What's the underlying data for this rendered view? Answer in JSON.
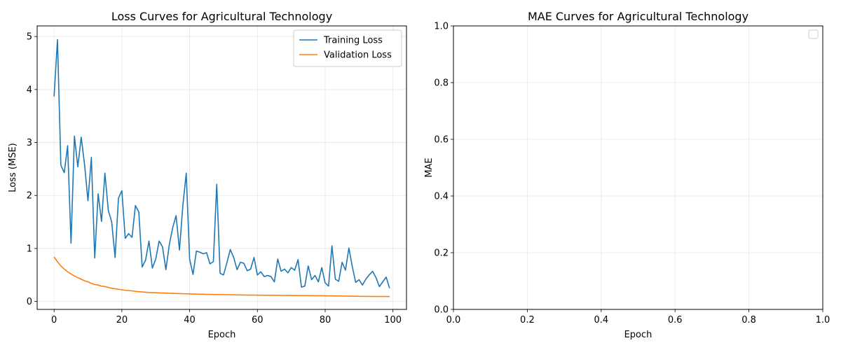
{
  "chart_data": [
    {
      "type": "line",
      "title": "Loss Curves for Agricultural Technology",
      "xlabel": "Epoch",
      "ylabel": "Loss (MSE)",
      "xlim": [
        -5,
        104
      ],
      "ylim": [
        -0.15,
        5.2
      ],
      "xticks": [
        0,
        20,
        40,
        60,
        80,
        100
      ],
      "yticks": [
        0,
        1,
        2,
        3,
        4,
        5
      ],
      "grid": true,
      "legend": "top-right",
      "series": [
        {
          "name": "Training Loss",
          "color": "#1f77b4",
          "x": [
            0,
            1,
            2,
            3,
            4,
            5,
            6,
            7,
            8,
            9,
            10,
            11,
            12,
            13,
            14,
            15,
            16,
            17,
            18,
            19,
            20,
            21,
            22,
            23,
            24,
            25,
            26,
            27,
            28,
            29,
            30,
            31,
            32,
            33,
            34,
            35,
            36,
            37,
            38,
            39,
            40,
            41,
            42,
            43,
            44,
            45,
            46,
            47,
            48,
            49,
            50,
            51,
            52,
            53,
            54,
            55,
            56,
            57,
            58,
            59,
            60,
            61,
            62,
            63,
            64,
            65,
            66,
            67,
            68,
            69,
            70,
            71,
            72,
            73,
            74,
            75,
            76,
            77,
            78,
            79,
            80,
            81,
            82,
            83,
            84,
            85,
            86,
            87,
            88,
            89,
            90,
            91,
            92,
            93,
            94,
            95,
            96,
            97,
            98,
            99
          ],
          "values": [
            3.87,
            4.94,
            2.57,
            2.43,
            2.94,
            1.1,
            3.12,
            2.54,
            3.1,
            2.58,
            1.9,
            2.72,
            0.82,
            2.03,
            1.51,
            2.42,
            1.72,
            1.5,
            0.83,
            1.95,
            2.09,
            1.19,
            1.28,
            1.21,
            1.81,
            1.69,
            0.65,
            0.78,
            1.14,
            0.63,
            0.8,
            1.14,
            1.03,
            0.6,
            1.07,
            1.39,
            1.62,
            0.97,
            1.81,
            2.42,
            0.8,
            0.51,
            0.95,
            0.93,
            0.9,
            0.92,
            0.71,
            0.75,
            2.21,
            0.53,
            0.5,
            0.73,
            0.98,
            0.83,
            0.6,
            0.74,
            0.72,
            0.58,
            0.61,
            0.83,
            0.5,
            0.56,
            0.47,
            0.49,
            0.47,
            0.37,
            0.8,
            0.57,
            0.61,
            0.54,
            0.64,
            0.59,
            0.79,
            0.27,
            0.29,
            0.67,
            0.41,
            0.49,
            0.37,
            0.64,
            0.35,
            0.29,
            1.05,
            0.42,
            0.38,
            0.74,
            0.59,
            1.01,
            0.66,
            0.36,
            0.41,
            0.31,
            0.42,
            0.5,
            0.57,
            0.45,
            0.28,
            0.37,
            0.46,
            0.25
          ]
        },
        {
          "name": "Validation Loss",
          "color": "#ff7f0e",
          "x": [
            0,
            1,
            2,
            3,
            4,
            5,
            6,
            7,
            8,
            9,
            10,
            11,
            12,
            13,
            14,
            15,
            16,
            17,
            18,
            19,
            20,
            21,
            22,
            23,
            24,
            25,
            26,
            27,
            28,
            29,
            30,
            31,
            32,
            33,
            34,
            35,
            36,
            37,
            38,
            39,
            40,
            41,
            42,
            43,
            44,
            45,
            46,
            47,
            48,
            49,
            50,
            51,
            52,
            53,
            54,
            55,
            56,
            57,
            58,
            59,
            60,
            61,
            62,
            63,
            64,
            65,
            66,
            67,
            68,
            69,
            70,
            71,
            72,
            73,
            74,
            75,
            76,
            77,
            78,
            79,
            80,
            81,
            82,
            83,
            84,
            85,
            86,
            87,
            88,
            89,
            90,
            91,
            92,
            93,
            94,
            95,
            96,
            97,
            98,
            99
          ],
          "values": [
            0.84,
            0.75,
            0.67,
            0.61,
            0.56,
            0.52,
            0.48,
            0.45,
            0.42,
            0.39,
            0.37,
            0.34,
            0.32,
            0.31,
            0.29,
            0.28,
            0.265,
            0.25,
            0.24,
            0.23,
            0.22,
            0.21,
            0.205,
            0.2,
            0.19,
            0.185,
            0.18,
            0.175,
            0.17,
            0.168,
            0.165,
            0.162,
            0.16,
            0.158,
            0.155,
            0.152,
            0.15,
            0.148,
            0.146,
            0.144,
            0.142,
            0.14,
            0.138,
            0.137,
            0.136,
            0.134,
            0.133,
            0.132,
            0.13,
            0.129,
            0.128,
            0.127,
            0.126,
            0.125,
            0.124,
            0.123,
            0.122,
            0.121,
            0.12,
            0.12,
            0.119,
            0.118,
            0.117,
            0.117,
            0.116,
            0.115,
            0.115,
            0.114,
            0.114,
            0.113,
            0.113,
            0.112,
            0.112,
            0.111,
            0.111,
            0.11,
            0.11,
            0.109,
            0.108,
            0.108,
            0.107,
            0.106,
            0.105,
            0.104,
            0.103,
            0.102,
            0.101,
            0.1,
            0.099,
            0.098,
            0.097,
            0.096,
            0.095,
            0.095,
            0.094,
            0.094,
            0.093,
            0.093,
            0.093,
            0.092
          ]
        }
      ]
    },
    {
      "type": "line",
      "title": "MAE Curves for Agricultural Technology",
      "xlabel": "Epoch",
      "ylabel": "MAE",
      "xlim": [
        0,
        1
      ],
      "ylim": [
        0,
        1
      ],
      "xticks": [
        0,
        0.2,
        0.4,
        0.6,
        0.8,
        1
      ],
      "xtick_labels": [
        "0.0",
        "0.2",
        "0.4",
        "0.6",
        "0.8",
        "1.0"
      ],
      "yticks": [
        0,
        0.2,
        0.4,
        0.6,
        0.8,
        1
      ],
      "ytick_labels": [
        "0.0",
        "0.2",
        "0.4",
        "0.6",
        "0.8",
        "1.0"
      ],
      "grid": true,
      "legend": "top-right",
      "series": []
    }
  ]
}
